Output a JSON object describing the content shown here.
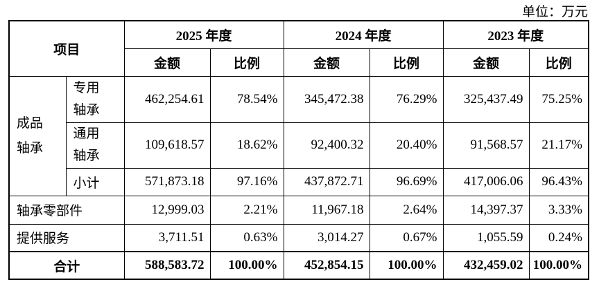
{
  "unit_label": "单位：万元",
  "header": {
    "item": "项目",
    "years": [
      "2025 年度",
      "2024 年度",
      "2023 年度"
    ],
    "amount": "金额",
    "ratio": "比例"
  },
  "category_finished": "成品\n轴承",
  "rows": [
    {
      "label": "专用\n轴承",
      "v": [
        "462,254.61",
        "78.54%",
        "345,472.38",
        "76.29%",
        "325,437.49",
        "75.25%"
      ]
    },
    {
      "label": "通用\n轴承",
      "v": [
        "109,618.57",
        "18.62%",
        "92,400.32",
        "20.40%",
        "91,568.57",
        "21.17%"
      ]
    },
    {
      "label": "小计",
      "v": [
        "571,873.18",
        "97.16%",
        "437,872.71",
        "96.69%",
        "417,006.06",
        "96.43%"
      ]
    },
    {
      "label": "轴承零部件",
      "v": [
        "12,999.03",
        "2.21%",
        "11,967.18",
        "2.64%",
        "14,397.37",
        "3.33%"
      ]
    },
    {
      "label": "提供服务",
      "v": [
        "3,711.51",
        "0.63%",
        "3,014.27",
        "0.67%",
        "1,055.59",
        "0.24%"
      ]
    },
    {
      "label": "合计",
      "v": [
        "588,583.72",
        "100.00%",
        "452,854.15",
        "100.00%",
        "432,459.02",
        "100.00%"
      ]
    }
  ]
}
